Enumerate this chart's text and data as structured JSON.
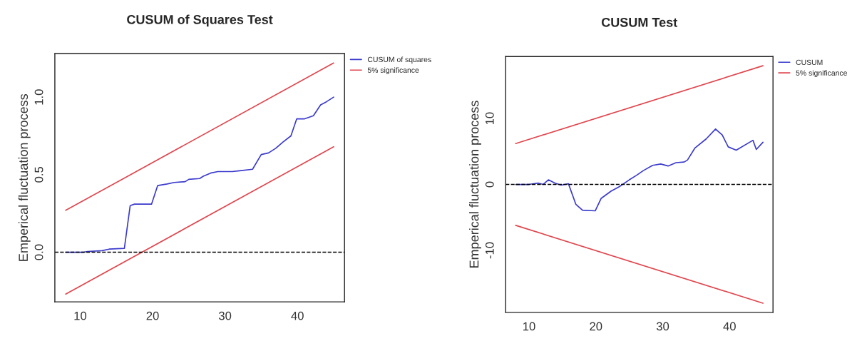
{
  "chart_data": [
    {
      "type": "line",
      "title": "CUSUM of Squares Test",
      "ylabel": "Emperical fluctuation process",
      "xlim": [
        6.5,
        46.5
      ],
      "ylim": [
        -0.32,
        1.28
      ],
      "xticks": [
        10,
        20,
        30,
        40
      ],
      "yticks": [
        {
          "value": 0,
          "label": "0.0"
        },
        {
          "value": 0.5,
          "label": "0.5"
        },
        {
          "value": 1,
          "label": "1.0"
        }
      ],
      "grid": false,
      "legend": "top right",
      "line_style": "solid",
      "marker": "none",
      "ref_lines": [
        {
          "axis": "y",
          "value": 0,
          "color": "#000000",
          "line_style": "dashed"
        }
      ],
      "series": [
        {
          "name": "CUSUM of squares",
          "color": "#3a3acd",
          "x": [
            8,
            10.5,
            11,
            13,
            14,
            16.1,
            16.9,
            17.5,
            19.85,
            20.7,
            22,
            23,
            24.5,
            25,
            26.5,
            27,
            28,
            29,
            31,
            32,
            33.8,
            35,
            36,
            37,
            38,
            39.1,
            39.9,
            41,
            42.2,
            43.2,
            44,
            45
          ],
          "values": [
            0,
            0,
            0.005,
            0.01,
            0.02,
            0.025,
            0.3,
            0.31,
            0.31,
            0.43,
            0.44,
            0.45,
            0.455,
            0.47,
            0.475,
            0.49,
            0.51,
            0.52,
            0.52,
            0.525,
            0.535,
            0.63,
            0.64,
            0.67,
            0.71,
            0.75,
            0.86,
            0.86,
            0.88,
            0.95,
            0.97,
            1.0
          ]
        },
        {
          "name": "5% significance",
          "color": "#e0464e",
          "x": [
            8,
            45
          ],
          "values": [
            0.27,
            1.22
          ]
        },
        {
          "color": "#e0464e",
          "x": [
            8,
            45
          ],
          "values": [
            -0.27,
            0.68
          ]
        }
      ]
    },
    {
      "type": "line",
      "title": "CUSUM Test",
      "ylabel": "Emperical fluctuation process",
      "xlim": [
        6.5,
        46.5
      ],
      "ylim": [
        -19.4,
        19.4
      ],
      "xticks": [
        10,
        20,
        30,
        40
      ],
      "yticks": [
        -10,
        0,
        10
      ],
      "grid": false,
      "legend": "top right",
      "line_style": "solid",
      "marker": "none",
      "ref_lines": [
        {
          "axis": "y",
          "value": 0,
          "color": "#000000",
          "line_style": "dashed"
        }
      ],
      "series": [
        {
          "name": "CUSUM",
          "color": "#3a3acd",
          "x": [
            8,
            10,
            11.4,
            12.1,
            12.9,
            13.9,
            14.8,
            15.9,
            17.0,
            18.0,
            19.9,
            20.8,
            22.3,
            23.4,
            24.0,
            25.0,
            26.1,
            27.1,
            28.5,
            29.7,
            30.8,
            32.0,
            33.2,
            33.7,
            34.8,
            36.5,
            37.9,
            38.9,
            39.8,
            41.0,
            43.5,
            44,
            45
          ],
          "values": [
            0,
            0,
            0.2,
            0,
            0.7,
            0.2,
            -0.1,
            0.1,
            -3.0,
            -3.9,
            -4.0,
            -2.1,
            -1.0,
            -0.4,
            0,
            0.7,
            1.4,
            2.1,
            2.9,
            3.1,
            2.8,
            3.3,
            3.4,
            3.7,
            5.5,
            6.9,
            8.4,
            7.5,
            5.7,
            5.2,
            6.7,
            5.3,
            6.4
          ]
        },
        {
          "name": "5% significance",
          "color": "#e0464e",
          "x": [
            8,
            45
          ],
          "values": [
            6.2,
            18
          ]
        },
        {
          "color": "#e0464e",
          "x": [
            8,
            45
          ],
          "values": [
            -6.2,
            -18
          ]
        }
      ]
    }
  ]
}
